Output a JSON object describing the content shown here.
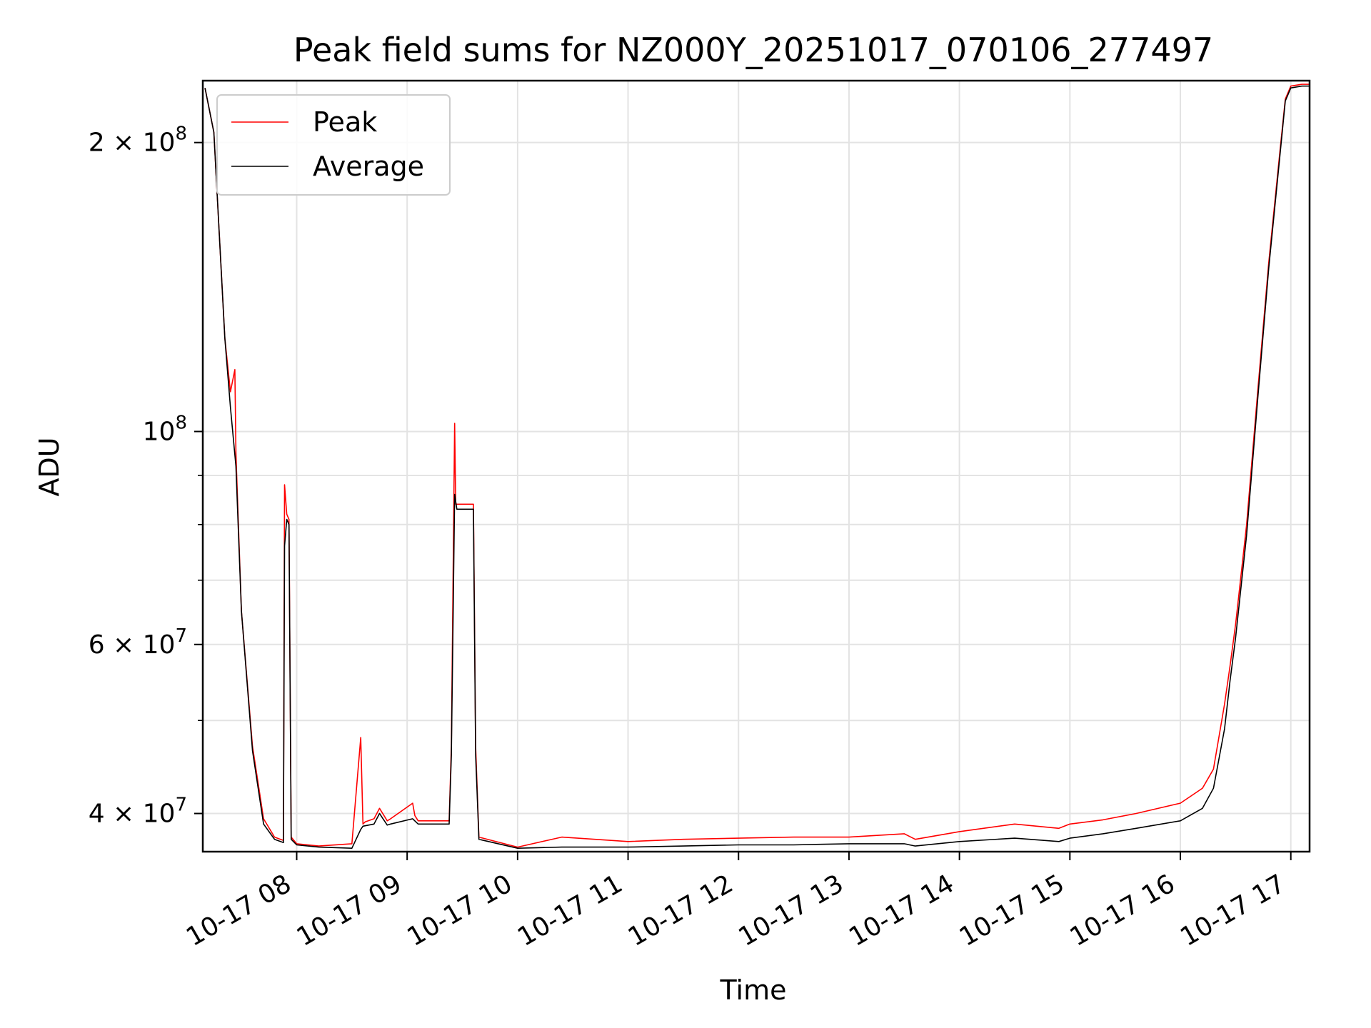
{
  "chart_data": {
    "type": "line",
    "title": "Peak field sums for NZ000Y_20251017_070106_277497",
    "xlabel": "Time",
    "ylabel": "ADU",
    "x_unit": "hours (10-17)",
    "xlim": [
      7.15,
      17.17
    ],
    "ylim": [
      36500000,
      232000000
    ],
    "yscale": "log",
    "grid": true,
    "legend_position": "upper-left",
    "x_tick_labels": [
      "10-17 08",
      "10-17 09",
      "10-17 10",
      "10-17 11",
      "10-17 12",
      "10-17 13",
      "10-17 14",
      "10-17 15",
      "10-17 16",
      "10-17 17"
    ],
    "x_tick_values": [
      8,
      9,
      10,
      11,
      12,
      13,
      14,
      15,
      16,
      17
    ],
    "y_major_ticks": [
      {
        "value": 40000000,
        "mantissa": "4",
        "exponent": "7"
      },
      {
        "value": 60000000,
        "mantissa": "6",
        "exponent": "7"
      },
      {
        "value": 100000000,
        "mantissa": "",
        "exponent": "8"
      },
      {
        "value": 200000000,
        "mantissa": "2",
        "exponent": "8"
      }
    ],
    "y_minor_ticks": [
      50000000,
      70000000,
      80000000,
      90000000
    ],
    "series": [
      {
        "name": "Peak",
        "color": "#ff0000",
        "x": [
          7.17,
          7.25,
          7.3,
          7.35,
          7.4,
          7.44,
          7.45,
          7.5,
          7.6,
          7.7,
          7.8,
          7.88,
          7.89,
          7.91,
          7.93,
          7.95,
          8.0,
          8.2,
          8.5,
          8.58,
          8.6,
          8.62,
          8.7,
          8.75,
          8.82,
          8.85,
          9.05,
          9.07,
          9.1,
          9.38,
          9.4,
          9.43,
          9.44,
          9.45,
          9.5,
          9.6,
          9.62,
          9.65,
          10.0,
          10.4,
          11.0,
          11.5,
          12.0,
          12.5,
          13.0,
          13.5,
          13.6,
          14.0,
          14.5,
          14.9,
          15.0,
          15.3,
          15.6,
          16.0,
          16.2,
          16.3,
          16.4,
          16.45,
          16.5,
          16.6,
          16.7,
          16.8,
          16.9,
          16.95,
          17.0,
          17.1,
          17.17
        ],
        "y": [
          228000000,
          205000000,
          160000000,
          125000000,
          110000000,
          116000000,
          95000000,
          65000000,
          47000000,
          39500000,
          37800000,
          37500000,
          88000000,
          82000000,
          81000000,
          37800000,
          37200000,
          37000000,
          37200000,
          48000000,
          39000000,
          39200000,
          39500000,
          40500000,
          39300000,
          39500000,
          41000000,
          39800000,
          39300000,
          39300000,
          47000000,
          102000000,
          84000000,
          84000000,
          84000000,
          84000000,
          47000000,
          37800000,
          36900000,
          37800000,
          37400000,
          37600000,
          37700000,
          37800000,
          37800000,
          38100000,
          37600000,
          38300000,
          39000000,
          38600000,
          39000000,
          39400000,
          40000000,
          41000000,
          42500000,
          44500000,
          52000000,
          57000000,
          63000000,
          80000000,
          110000000,
          150000000,
          195000000,
          222000000,
          229000000,
          230000000,
          230000000
        ]
      },
      {
        "name": "Average",
        "color": "#000000",
        "x": [
          7.17,
          7.25,
          7.3,
          7.35,
          7.4,
          7.45,
          7.5,
          7.6,
          7.7,
          7.8,
          7.88,
          7.89,
          7.91,
          7.93,
          7.95,
          8.0,
          8.2,
          8.5,
          8.58,
          8.6,
          8.7,
          8.75,
          8.82,
          8.85,
          9.05,
          9.1,
          9.38,
          9.4,
          9.43,
          9.45,
          9.5,
          9.6,
          9.62,
          9.65,
          10.0,
          10.4,
          11.0,
          11.5,
          12.0,
          12.5,
          13.0,
          13.5,
          13.6,
          14.0,
          14.5,
          14.9,
          15.0,
          15.3,
          15.6,
          16.0,
          16.2,
          16.3,
          16.4,
          16.45,
          16.5,
          16.6,
          16.7,
          16.8,
          16.9,
          16.95,
          17.0,
          17.1,
          17.17
        ],
        "y": [
          228000000,
          205000000,
          160000000,
          125000000,
          106000000,
          92000000,
          65000000,
          46500000,
          39000000,
          37600000,
          37300000,
          76000000,
          81000000,
          80000000,
          37600000,
          37100000,
          36900000,
          36800000,
          38500000,
          38800000,
          39000000,
          40000000,
          38900000,
          39000000,
          39500000,
          39000000,
          39000000,
          46000000,
          86000000,
          83000000,
          83000000,
          83000000,
          46000000,
          37600000,
          36800000,
          36900000,
          36900000,
          37000000,
          37100000,
          37100000,
          37200000,
          37200000,
          37000000,
          37400000,
          37700000,
          37400000,
          37700000,
          38100000,
          38600000,
          39300000,
          40500000,
          42500000,
          49000000,
          55000000,
          61000000,
          78000000,
          108000000,
          148000000,
          193000000,
          221000000,
          228000000,
          229000000,
          229000000
        ]
      }
    ]
  }
}
